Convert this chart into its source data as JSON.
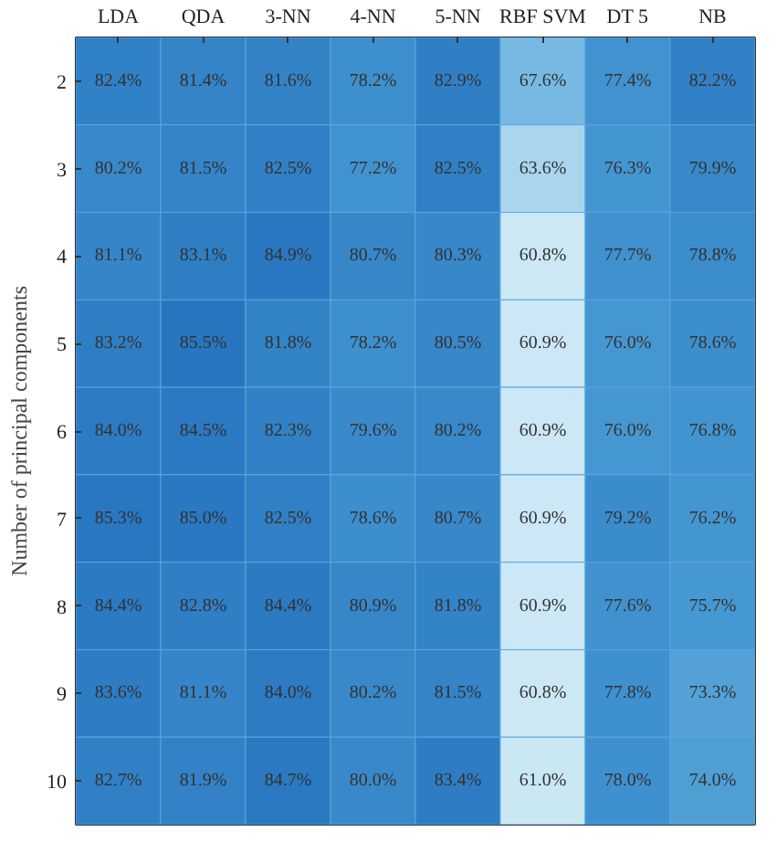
{
  "chart_data": {
    "type": "heatmap",
    "ylabel": "Number of principal components",
    "categories": [
      "LDA",
      "QDA",
      "3-NN",
      "4-NN",
      "5-NN",
      "RBF SVM",
      "DT 5",
      "NB"
    ],
    "y_categories": [
      "2",
      "3",
      "4",
      "5",
      "6",
      "7",
      "8",
      "9",
      "10"
    ],
    "cells": [
      [
        82.4,
        81.4,
        81.6,
        78.2,
        82.9,
        67.6,
        77.4,
        82.2
      ],
      [
        80.2,
        81.5,
        82.5,
        77.2,
        82.5,
        63.6,
        76.3,
        79.9
      ],
      [
        81.1,
        83.1,
        84.9,
        80.7,
        80.3,
        60.8,
        77.7,
        78.8
      ],
      [
        83.2,
        85.5,
        81.8,
        78.2,
        80.5,
        60.9,
        76.0,
        78.6
      ],
      [
        84.0,
        84.5,
        82.3,
        79.6,
        80.2,
        60.9,
        76.0,
        76.8
      ],
      [
        85.3,
        85.0,
        82.5,
        78.6,
        80.7,
        60.9,
        79.2,
        76.2
      ],
      [
        84.4,
        82.8,
        84.4,
        80.9,
        81.8,
        60.9,
        77.6,
        75.7
      ],
      [
        83.6,
        81.1,
        84.0,
        80.2,
        81.5,
        60.8,
        77.8,
        73.3
      ],
      [
        82.7,
        81.9,
        84.7,
        80.0,
        83.4,
        61.0,
        78.0,
        74.0
      ]
    ],
    "cell_labels": [
      [
        "82.4%",
        "81.4%",
        "81.6%",
        "78.2%",
        "82.9%",
        "67.6%",
        "77.4%",
        "82.2%"
      ],
      [
        "80.2%",
        "81.5%",
        "82.5%",
        "77.2%",
        "82.5%",
        "63.6%",
        "76.3%",
        "79.9%"
      ],
      [
        "81.1%",
        "83.1%",
        "84.9%",
        "80.7%",
        "80.3%",
        "60.8%",
        "77.7%",
        "78.8%"
      ],
      [
        "83.2%",
        "85.5%",
        "81.8%",
        "78.2%",
        "80.5%",
        "60.9%",
        "76.0%",
        "78.6%"
      ],
      [
        "84.0%",
        "84.5%",
        "82.3%",
        "79.6%",
        "80.2%",
        "60.9%",
        "76.0%",
        "76.8%"
      ],
      [
        "85.3%",
        "85.0%",
        "82.5%",
        "78.6%",
        "80.7%",
        "60.9%",
        "79.2%",
        "76.2%"
      ],
      [
        "84.4%",
        "82.8%",
        "84.4%",
        "80.9%",
        "81.8%",
        "60.9%",
        "77.6%",
        "75.7%"
      ],
      [
        "83.6%",
        "81.1%",
        "84.0%",
        "80.2%",
        "81.5%",
        "60.8%",
        "77.8%",
        "73.3%"
      ],
      [
        "82.7%",
        "81.9%",
        "84.7%",
        "80.0%",
        "83.4%",
        "61.0%",
        "78.0%",
        "74.0%"
      ]
    ]
  }
}
